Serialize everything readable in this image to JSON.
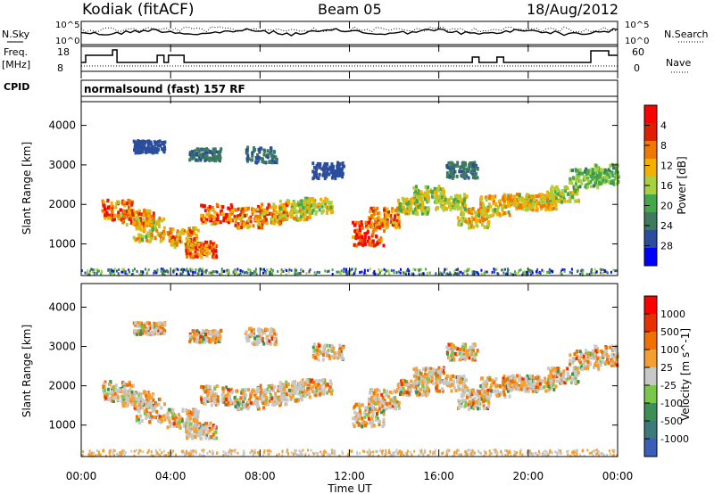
{
  "header": {
    "station": "Kodiak (fitACF)",
    "beam": "Beam 05",
    "date": "18/Aug/2012"
  },
  "strip": {
    "nsky_label": "N.Sky",
    "nsky_ticks": [
      "10^5",
      "10^0"
    ],
    "nsearch_label": "N.Search",
    "nsearch_ticks": [
      "10^5",
      "10^0"
    ],
    "freq_label": "Freq.",
    "freq_unit": "[MHz]",
    "freq_ticks": [
      "18",
      "8"
    ],
    "nave_label": "Nave",
    "nave_ticks": [
      "60",
      "0"
    ],
    "cpid_label": "CPID",
    "cpid_text": "normalsound (fast) 157 RF"
  },
  "chart_data": [
    {
      "type": "heatmap",
      "name": "power",
      "ylabel": "Slant Range [km]",
      "xlabel": "Time UT",
      "yticks": [
        "1000",
        "2000",
        "3000",
        "4000"
      ],
      "ylim": [
        200,
        4600
      ],
      "xlim": [
        0,
        24
      ],
      "colorbar_label": "Power [dB]",
      "colorbar_ticks": [
        "4",
        "8",
        "12",
        "16",
        "20",
        "24",
        "28"
      ],
      "colors": [
        "#0000ff",
        "#2a4d9c",
        "#3d7a5e",
        "#44a84a",
        "#a8d040",
        "#f4b000",
        "#f07800",
        "#e02000",
        "#ff0000"
      ]
    },
    {
      "type": "heatmap",
      "name": "velocity",
      "ylabel": "Slant Range [km]",
      "xlabel": "Time UT",
      "yticks": [
        "1000",
        "2000",
        "3000",
        "4000"
      ],
      "ylim": [
        200,
        4600
      ],
      "xlim": [
        0,
        24
      ],
      "colorbar_label": "Velocity [m s^-1]",
      "colorbar_ticks": [
        "1000",
        "500",
        "100",
        "25",
        "-25",
        "-100",
        "-500",
        "-1000"
      ],
      "colors": [
        "#3a5fb8",
        "#3b7a7a",
        "#3d8f55",
        "#7ac84a",
        "#c8c8c8",
        "#f4a030",
        "#f07000",
        "#e83000",
        "#ff0000"
      ]
    }
  ],
  "time_axis": {
    "ticks": [
      "00:00",
      "04:00",
      "08:00",
      "12:00",
      "16:00",
      "20:00",
      "00:00"
    ],
    "label": "Time UT"
  }
}
